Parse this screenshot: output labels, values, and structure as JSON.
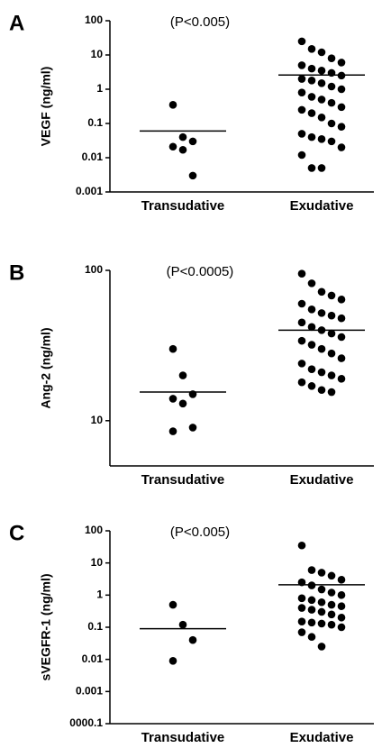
{
  "chart_data": [
    {
      "type": "strip",
      "panel_label": "A",
      "annotation": "(P<0.005)",
      "y_label": "VEGF  (ng/ml)",
      "log_y": true,
      "color": "#000000",
      "ylim": [
        0.001,
        100
      ],
      "yticks": [
        0.001,
        0.01,
        0.1,
        1,
        10,
        100
      ],
      "categories": [
        "Transudative",
        "Exudative"
      ],
      "groups": [
        {
          "values": [
            0.35,
            0.04,
            0.03,
            0.021,
            0.017,
            0.003
          ],
          "median": 0.06
        },
        {
          "values": [
            25,
            15,
            12,
            8,
            6,
            5,
            4,
            3.5,
            3,
            2.5,
            2,
            1.8,
            1.5,
            1.2,
            1,
            0.8,
            0.6,
            0.5,
            0.4,
            0.3,
            0.25,
            0.2,
            0.15,
            0.1,
            0.08,
            0.05,
            0.04,
            0.035,
            0.03,
            0.02,
            0.012,
            0.005,
            0.005
          ],
          "median": 2.6
        }
      ]
    },
    {
      "type": "strip",
      "panel_label": "B",
      "annotation": "(P<0.0005)",
      "y_label": "Ang-2 (ng/ml)",
      "log_y": true,
      "color": "#000000",
      "ylim": [
        5,
        100
      ],
      "yticks": [
        10,
        100
      ],
      "categories": [
        "Transudative",
        "Exudative"
      ],
      "groups": [
        {
          "values": [
            30,
            20,
            15,
            14,
            13,
            9,
            8.5
          ],
          "median": 15.5
        },
        {
          "values": [
            95,
            82,
            72,
            68,
            64,
            60,
            55,
            52,
            50,
            48,
            45,
            42,
            40,
            38,
            36,
            34,
            32,
            30,
            28,
            26,
            24,
            22,
            21,
            20,
            19,
            18,
            17,
            16,
            15.5
          ],
          "median": 40
        }
      ]
    },
    {
      "type": "strip",
      "panel_label": "C",
      "annotation": "(P<0.005)",
      "y_label": "sVEGFR-1 (ng/ml)",
      "log_y": true,
      "color": "#000000",
      "ylim": [
        0.0001,
        100
      ],
      "yticks": [
        {
          "value": 0.0001,
          "label": "0000.1"
        },
        0.001,
        0.01,
        0.1,
        1,
        10,
        100
      ],
      "categories": [
        "Transudative",
        "Exudative"
      ],
      "groups": [
        {
          "values": [
            0.5,
            0.12,
            0.04,
            0.009
          ],
          "median": 0.09
        },
        {
          "values": [
            35,
            6,
            5,
            4,
            3,
            2.5,
            2,
            1.5,
            1.2,
            1,
            0.8,
            0.7,
            0.6,
            0.5,
            0.45,
            0.4,
            0.35,
            0.3,
            0.25,
            0.2,
            0.15,
            0.14,
            0.13,
            0.12,
            0.1,
            0.07,
            0.05,
            0.025
          ],
          "median": 2.1
        }
      ]
    }
  ]
}
